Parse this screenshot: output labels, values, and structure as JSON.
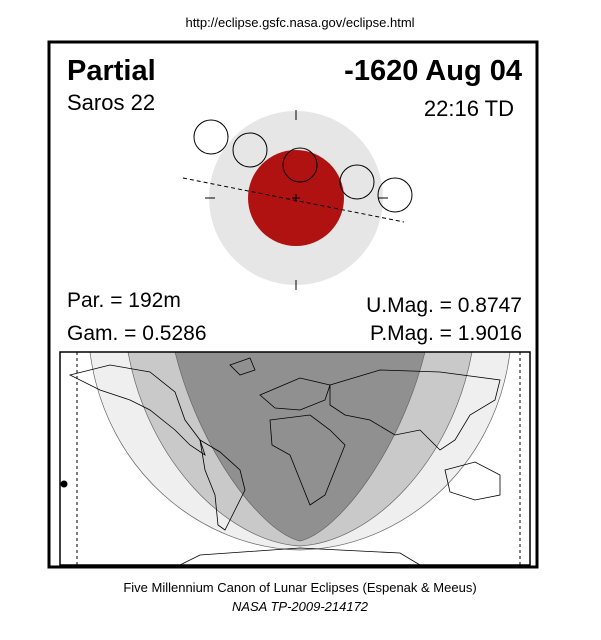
{
  "url": "http://eclipse.gsfc.nasa.gov/eclipse.html",
  "header": {
    "type": "Partial",
    "date": "-1620 Aug 04",
    "saros": "Saros  22",
    "time": "22:16 TD"
  },
  "params": {
    "par": "Par. = 192m",
    "gam": "Gam. = 0.5286",
    "umag": "U.Mag. = 0.8747",
    "pmag": "P.Mag. = 1.9016"
  },
  "footer": {
    "line1": "Five Millennium Canon of Lunar Eclipses (Espenak & Meeus)",
    "line2": "NASA TP-2009-214172"
  }
}
